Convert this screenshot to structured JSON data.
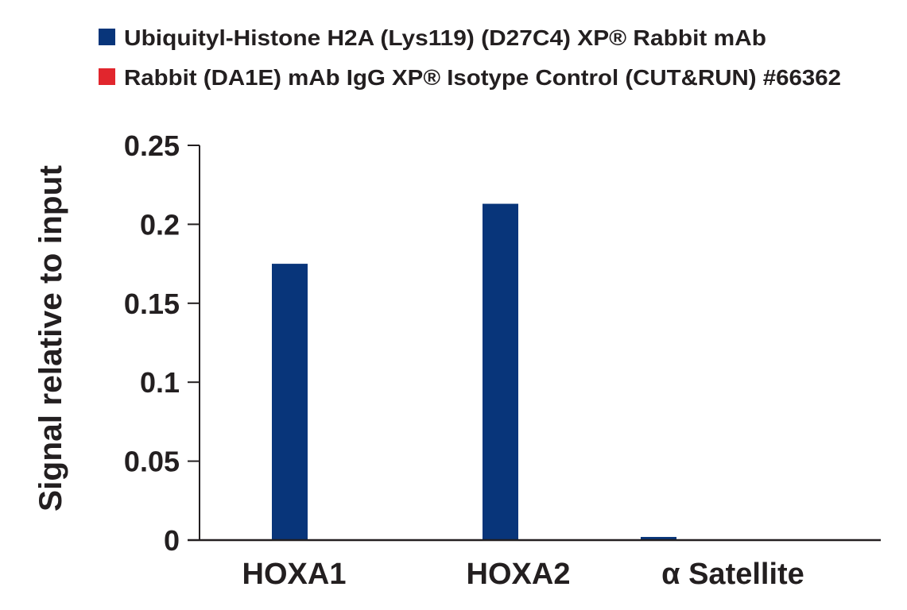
{
  "chart_data": {
    "type": "bar",
    "title": "",
    "xlabel": "",
    "ylabel": "Signal relative to input",
    "ylim": [
      0,
      0.25
    ],
    "yticks": [
      "0",
      "0.05",
      "0.1",
      "0.15",
      "0.2",
      "0.25"
    ],
    "categories": [
      "HOXA1",
      "HOXA2",
      "α Satellite"
    ],
    "grid": false,
    "legend_position": "top-left",
    "series": [
      {
        "name": "Ubiquityl-Histone H2A (Lys119) (D27C4) XP® Rabbit mAb",
        "color": "#08357a",
        "values": [
          0.175,
          0.213,
          0.002
        ]
      },
      {
        "name": "Rabbit (DA1E) mAb IgG XP® Isotype Control (CUT&RUN) #66362",
        "color": "#e1262d",
        "values": [
          0.0005,
          0,
          0
        ]
      }
    ]
  }
}
